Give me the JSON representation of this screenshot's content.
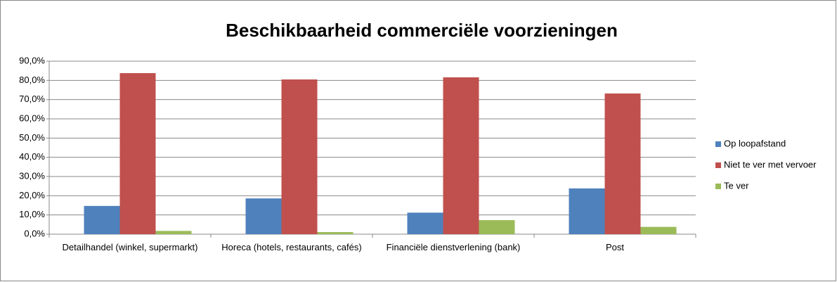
{
  "chart_data": {
    "type": "bar",
    "title": "Beschikbaarheid commerciële voorzieningen",
    "categories": [
      "Detailhandel (winkel, supermarkt)",
      "Horeca (hotels, restaurants, cafés)",
      "Financiële dienstverlening (bank)",
      "Post"
    ],
    "series": [
      {
        "name": "Op loopafstand",
        "color": "#4f81bd",
        "values": [
          14.7,
          18.6,
          11.2,
          23.8
        ]
      },
      {
        "name": "Niet te ver met vervoer",
        "color": "#c0504d",
        "values": [
          83.8,
          80.5,
          81.6,
          73.2
        ]
      },
      {
        "name": "Te ver",
        "color": "#9bbb59",
        "values": [
          1.7,
          1.1,
          7.3,
          3.8
        ]
      }
    ],
    "ylim": [
      0,
      90
    ],
    "yticks": [
      {
        "value": 0,
        "label": "0,0%"
      },
      {
        "value": 10,
        "label": "10,0%"
      },
      {
        "value": 20,
        "label": "20,0%"
      },
      {
        "value": 30,
        "label": "30,0%"
      },
      {
        "value": 40,
        "label": "40,0%"
      },
      {
        "value": 50,
        "label": "50,0%"
      },
      {
        "value": 60,
        "label": "60,0%"
      },
      {
        "value": 70,
        "label": "70,0%"
      },
      {
        "value": 80,
        "label": "80,0%"
      },
      {
        "value": 90,
        "label": "90,0%"
      }
    ],
    "grid": true,
    "legend": "right"
  }
}
